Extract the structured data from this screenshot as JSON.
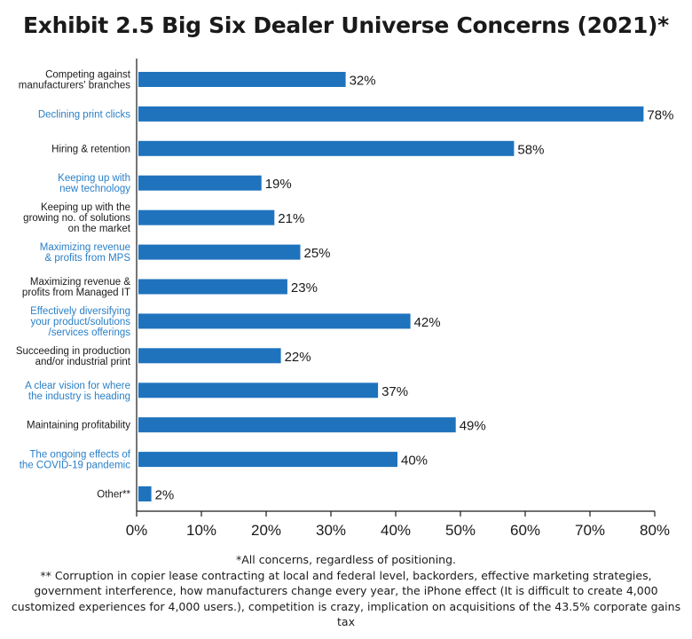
{
  "chart_data": {
    "type": "bar",
    "orientation": "horizontal",
    "title": "Exhibit 2.5 Big Six Dealer Universe Concerns (2021)*",
    "categories": [
      {
        "lines": [
          "Competing against",
          "manufacturers' branches"
        ],
        "highlight": false
      },
      {
        "lines": [
          "Declining print clicks"
        ],
        "highlight": true
      },
      {
        "lines": [
          "Hiring & retention"
        ],
        "highlight": false
      },
      {
        "lines": [
          "Keeping up with",
          "new technology"
        ],
        "highlight": true
      },
      {
        "lines": [
          "Keeping up with the",
          "growing no. of solutions",
          "on the market"
        ],
        "highlight": false
      },
      {
        "lines": [
          "Maximizing revenue",
          "& profits from MPS"
        ],
        "highlight": true
      },
      {
        "lines": [
          "Maximizing revenue &",
          "profits from Managed IT"
        ],
        "highlight": false
      },
      {
        "lines": [
          "Effectively diversifying",
          "your product/solutions",
          "/services offerings"
        ],
        "highlight": true
      },
      {
        "lines": [
          "Succeeding in production",
          "and/or industrial print"
        ],
        "highlight": false
      },
      {
        "lines": [
          "A clear vision for where",
          "the industry is heading"
        ],
        "highlight": true
      },
      {
        "lines": [
          "Maintaining profitability"
        ],
        "highlight": false
      },
      {
        "lines": [
          "The ongoing effects of",
          "the COVID-19 pandemic"
        ],
        "highlight": true
      },
      {
        "lines": [
          "Other**"
        ],
        "highlight": false
      }
    ],
    "values": [
      32,
      78,
      58,
      19,
      21,
      25,
      23,
      42,
      22,
      37,
      49,
      40,
      2
    ],
    "value_labels": [
      "32%",
      "78%",
      "58%",
      "19%",
      "21%",
      "25%",
      "23%",
      "42%",
      "22%",
      "37%",
      "49%",
      "40%",
      "2%"
    ],
    "xlim": [
      0,
      80
    ],
    "xticks": [
      "0%",
      "10%",
      "20%",
      "30%",
      "40%",
      "50%",
      "60%",
      "70%",
      "80%"
    ],
    "xlabel": "",
    "ylabel": "",
    "grid": false,
    "colors": {
      "bar": "#1f73bd",
      "highlight_label": "#2a7fc6",
      "text": "#1a1a1a",
      "axis": "#1a1a1a"
    }
  },
  "footnotes": {
    "note1": "*All concerns, regardless of positioning.",
    "note2": "** Corruption in copier lease contracting at local and federal level, backorders, effective marketing strategies, government interference, how manufacturers change every year, the iPhone effect (It is difficult to create 4,000 customized experiences for 4,000 users.), competition is crazy, implication on acquisitions of the 43.5% corporate gains tax"
  }
}
